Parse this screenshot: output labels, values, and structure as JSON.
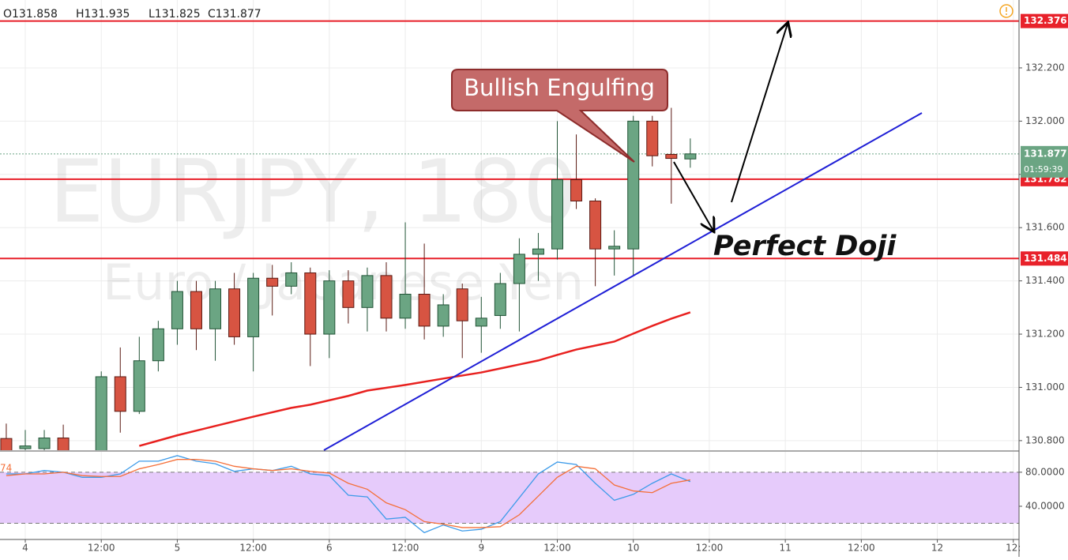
{
  "chart_data": {
    "type": "candlestick",
    "header": [
      "O131.858",
      "H131.935",
      "L131.825",
      "C131.877"
    ],
    "watermark": "EURJPY, 180",
    "watermark_subtitle": "Euro / Japanese Yen",
    "annotations": [
      "Bullish Engulfing",
      "Perfect Doji"
    ],
    "xlim": [
      -1.33,
      52.3
    ],
    "xticks": [
      {
        "value": 0,
        "label": "4"
      },
      {
        "value": 4,
        "label": "12:00"
      },
      {
        "value": 8,
        "label": "5"
      },
      {
        "value": 12,
        "label": "12:00"
      },
      {
        "value": 16,
        "label": "6"
      },
      {
        "value": 20,
        "label": "12:00"
      },
      {
        "value": 24,
        "label": "9"
      },
      {
        "value": 28,
        "label": "12:00"
      },
      {
        "value": 32,
        "label": "10"
      },
      {
        "value": 36,
        "label": "12:00"
      },
      {
        "value": 40,
        "label": "11"
      },
      {
        "value": 44,
        "label": "12:00"
      },
      {
        "value": 48,
        "label": "12"
      },
      {
        "value": 52,
        "label": "12:"
      }
    ],
    "ylim": [
      130.764,
      132.455
    ],
    "yticks": [
      {
        "value": 130.8,
        "label": "130.800"
      },
      {
        "value": 131.0,
        "label": "131.000"
      },
      {
        "value": 131.2,
        "label": "131.200"
      },
      {
        "value": 131.4,
        "label": "131.400"
      },
      {
        "value": 131.6,
        "label": "131.600"
      },
      {
        "value": 131.8,
        "label": "131.800"
      },
      {
        "value": 132.0,
        "label": "132.000"
      },
      {
        "value": 132.2,
        "label": "132.200"
      }
    ],
    "grid": true,
    "up_color": "#6ba583",
    "down_color": "#d75442",
    "x": [
      -1,
      0,
      1,
      2,
      4,
      5,
      6,
      7,
      8,
      9,
      10,
      11,
      12,
      13,
      14,
      15,
      16,
      17,
      18,
      19,
      20,
      21,
      22,
      23,
      24,
      25,
      26,
      27,
      28,
      29,
      30,
      31,
      32,
      33,
      34,
      35
    ],
    "open": [
      130.808,
      130.77,
      130.77,
      130.81,
      130.76,
      131.04,
      130.91,
      131.1,
      131.22,
      131.36,
      131.22,
      131.37,
      131.19,
      131.41,
      131.38,
      131.43,
      131.2,
      131.4,
      131.3,
      131.42,
      131.26,
      131.35,
      131.23,
      131.37,
      131.23,
      131.27,
      131.39,
      131.5,
      131.52,
      131.78,
      131.7,
      131.52,
      131.52,
      132.0,
      131.875,
      131.858
    ],
    "high": [
      130.864,
      130.84,
      130.84,
      130.86,
      131.06,
      131.15,
      131.19,
      131.25,
      131.4,
      131.4,
      131.4,
      131.43,
      131.43,
      131.46,
      131.47,
      131.45,
      131.44,
      131.44,
      131.45,
      131.47,
      131.62,
      131.54,
      131.35,
      131.39,
      131.34,
      131.43,
      131.56,
      131.58,
      132.0,
      131.95,
      131.71,
      131.59,
      132.02,
      132.02,
      132.05,
      131.935
    ],
    "low": [
      130.76,
      130.76,
      130.76,
      130.75,
      130.75,
      130.83,
      130.9,
      131.06,
      131.16,
      131.14,
      131.1,
      131.16,
      131.06,
      131.27,
      131.35,
      131.08,
      131.11,
      131.24,
      131.21,
      131.21,
      131.22,
      131.18,
      131.19,
      131.11,
      131.13,
      131.22,
      131.21,
      131.4,
      131.48,
      131.67,
      131.38,
      131.42,
      131.42,
      131.83,
      131.69,
      131.825
    ],
    "close": [
      130.76,
      130.78,
      130.81,
      130.76,
      131.04,
      130.91,
      131.1,
      131.22,
      131.36,
      131.22,
      131.37,
      131.19,
      131.41,
      131.38,
      131.43,
      131.2,
      131.4,
      131.3,
      131.42,
      131.26,
      131.35,
      131.23,
      131.31,
      131.25,
      131.26,
      131.39,
      131.5,
      131.52,
      131.78,
      131.7,
      131.52,
      131.53,
      132.0,
      131.87,
      131.86,
      131.877
    ],
    "ma": {
      "color": "#e8211f",
      "x": [
        6,
        7,
        8,
        10,
        12,
        14,
        15,
        17,
        18,
        20,
        22,
        24,
        26,
        27,
        28,
        29,
        31,
        32,
        33,
        34,
        35
      ],
      "values": [
        130.78,
        130.8,
        130.82,
        130.855,
        130.89,
        130.923,
        130.935,
        130.968,
        130.988,
        131.009,
        131.033,
        131.056,
        131.086,
        131.101,
        131.122,
        131.142,
        131.172,
        131.202,
        131.231,
        131.258,
        131.282
      ]
    },
    "levels": [
      132.376,
      131.782,
      131.484
    ],
    "level_color": "#e8212a",
    "last_price": 131.877,
    "last_color": "#6ba583",
    "countdown": "01:59:39",
    "indicator": {
      "ylim": [
        1,
        104
      ],
      "yticks": [
        {
          "value": 80,
          "label": "80.0000"
        },
        {
          "value": 40,
          "label": "40.0000"
        }
      ],
      "band": [
        20,
        80
      ],
      "band_color": "#e6cbfb",
      "label": "74",
      "x": [
        -1,
        0,
        1,
        2,
        3,
        4,
        5,
        6,
        7,
        8,
        9,
        10,
        11,
        12,
        13,
        14,
        15,
        16,
        17,
        18,
        19,
        20,
        21,
        22,
        23,
        24,
        25,
        26,
        27,
        28,
        29,
        30,
        31,
        32,
        33,
        34,
        35
      ],
      "series": [
        {
          "color": "#3d9be9",
          "values": [
            78,
            78,
            82,
            80,
            74,
            74,
            78,
            93,
            93,
            99.5,
            93,
            90,
            81,
            84,
            82,
            87,
            78,
            76,
            53,
            51,
            25,
            27,
            9,
            18,
            11,
            13,
            22,
            50,
            78,
            92,
            89,
            67,
            47,
            54,
            67,
            78,
            69
          ]
        },
        {
          "color": "#f4703a",
          "values": [
            76,
            78,
            78,
            80,
            76,
            75,
            75,
            84,
            89,
            95,
            95,
            93,
            87,
            84,
            82,
            84,
            81,
            79,
            67,
            60,
            44,
            36,
            22,
            19,
            15,
            15,
            16,
            30,
            52,
            74,
            87,
            84,
            65,
            58,
            56,
            67,
            71
          ]
        }
      ]
    }
  }
}
